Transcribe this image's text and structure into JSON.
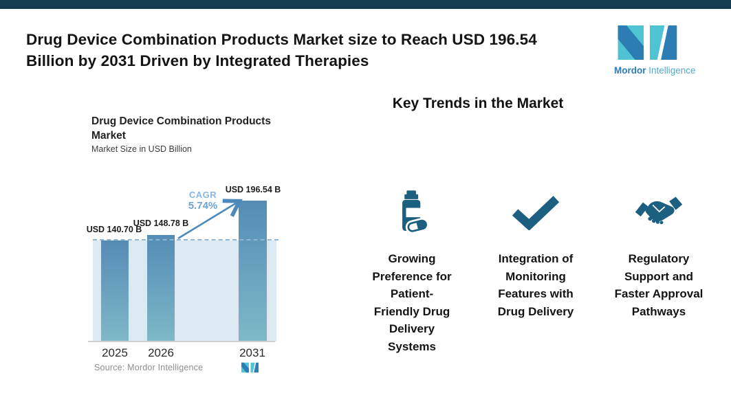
{
  "meta": {
    "top_bar_color": "#123d50",
    "accent_icon_color": "#1d5f80"
  },
  "header": {
    "title_lines": [
      "Drug Device Combination Products Market size to Reach USD 196.54",
      "Billion by 2031 Driven by Integrated Therapies"
    ],
    "logo": {
      "word1": "Mordor",
      "word2": "Intelligence",
      "teal": "#4fc3d3",
      "blue": "#2b7db4"
    }
  },
  "chart": {
    "title_lines": [
      "Drug Device Combination Products",
      "Market"
    ],
    "subtitle": "Market Size in USD Billion",
    "cagr_label": "CAGR",
    "cagr_value": "5.74%",
    "source": "Source: Mordor Intelligence"
  },
  "chart_data": {
    "type": "bar",
    "title": "Drug Device Combination Products Market",
    "subtitle": "Market Size in USD Billion",
    "unit": "USD Billion",
    "categories": [
      "2025",
      "2026",
      "2031"
    ],
    "values": [
      140.7,
      148.78,
      196.54
    ],
    "bar_labels": [
      "USD 140.70 B",
      "USD 148.78 B",
      "USD 196.54 B"
    ],
    "cagr_percent": "5.74%",
    "annotations": [
      "CAGR 5.74% arrow from 2026 bar to 2031 bar",
      "dashed reference line at 2025 level"
    ],
    "source": "Source: Mordor Intelligence",
    "legend": "none",
    "grid": "off",
    "colors": {
      "bar_gradient_top": "#548cb5",
      "bar_gradient_bottom": "#7db9c7",
      "background_panel": "#dce8f2",
      "dashed_line": "#8fb6d4",
      "arrow": "#4d8abc",
      "cagr_text": "#7cadd8"
    }
  },
  "trends": {
    "heading": "Key Trends in the Market",
    "items": [
      {
        "icon": "pill-bottle-icon",
        "label_lines": [
          "Growing",
          "Preference for",
          "Patient-",
          "Friendly Drug",
          "Delivery",
          "Systems"
        ]
      },
      {
        "icon": "checkmark-icon",
        "label_lines": [
          "Integration of",
          "Monitoring",
          "Features with",
          "Drug Delivery"
        ]
      },
      {
        "icon": "handshake-icon",
        "label_lines": [
          "Regulatory",
          "Support and",
          "Faster Approval",
          "Pathways"
        ]
      }
    ]
  }
}
